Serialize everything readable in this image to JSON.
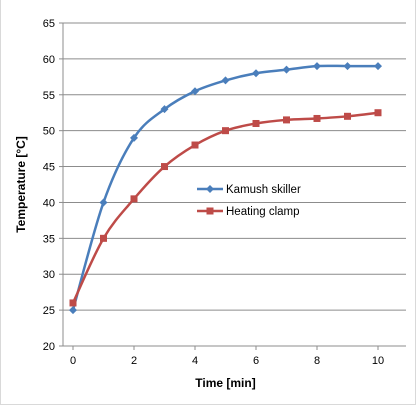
{
  "chart_data": {
    "type": "line",
    "title": "",
    "xlabel": "Time [min]",
    "ylabel": "Temperature  [°C]",
    "xlim": [
      0,
      10
    ],
    "ylim": [
      20,
      65
    ],
    "x_ticks": [
      "0",
      "2",
      "4",
      "6",
      "8",
      "10"
    ],
    "y_ticks": [
      "20",
      "25",
      "30",
      "35",
      "40",
      "45",
      "50",
      "55",
      "60",
      "65"
    ],
    "grid": "horizontal",
    "legend_position": "center-right",
    "series": [
      {
        "name": "Kamush skiller",
        "color": "#4a7ebb",
        "marker": "diamond",
        "x": [
          0,
          1,
          2,
          3,
          4,
          5,
          6,
          7,
          8,
          9,
          10
        ],
        "y": [
          25,
          40,
          49,
          53,
          55.5,
          57,
          58,
          58.5,
          59,
          59,
          59
        ]
      },
      {
        "name": "Heating clamp",
        "color": "#be4b48",
        "marker": "square",
        "x": [
          0,
          1,
          2,
          3,
          4,
          5,
          6,
          7,
          8,
          9,
          10
        ],
        "y": [
          26,
          35,
          40.5,
          45,
          48,
          50,
          51,
          51.5,
          51.7,
          52,
          52.5
        ]
      }
    ]
  }
}
